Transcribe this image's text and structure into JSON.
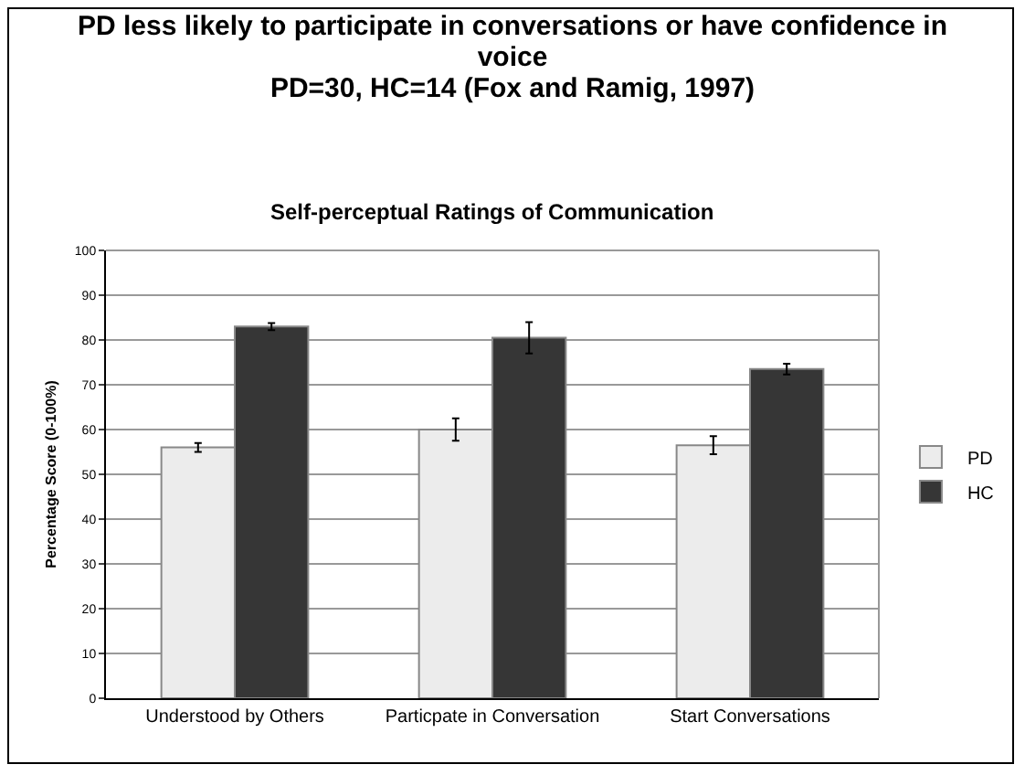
{
  "chart_data": {
    "type": "bar",
    "title": "PD less likely to participate in conversations or have confidence in voice",
    "subtitle": "PD=30, HC=14  (Fox and Ramig, 1997)",
    "annotations": [
      "Self-perceptual Ratings of Communication"
    ],
    "ylabel": "Percentage Score (0-100%)",
    "categories": [
      "Understood by Others",
      "Particpate in Conversation",
      "Start Conversations"
    ],
    "series": [
      {
        "name": "PD",
        "color": "#ececec",
        "values": [
          56,
          60,
          56.5
        ],
        "errors": [
          1,
          2.5,
          2
        ]
      },
      {
        "name": "HC",
        "color": "#363636",
        "values": [
          83,
          80.5,
          73.5
        ],
        "errors": [
          0.8,
          3.5,
          1.2
        ]
      }
    ],
    "ylim": [
      0,
      100
    ],
    "yticks": [
      0,
      10,
      20,
      30,
      40,
      50,
      60,
      70,
      80,
      90,
      100
    ],
    "grid": "y",
    "legend": "right"
  }
}
